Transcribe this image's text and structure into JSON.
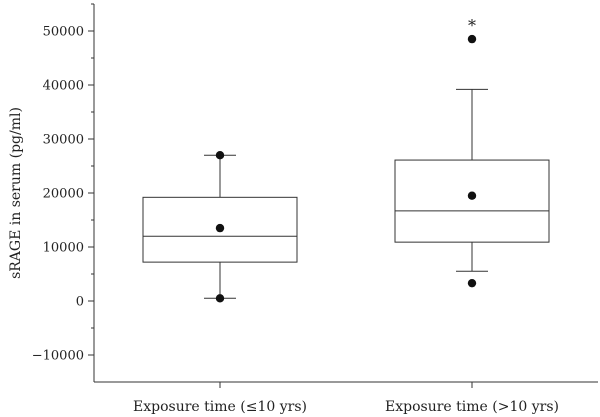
{
  "chart_data": {
    "type": "box",
    "ylabel": "sRAGE in serum (pg/ml)",
    "ylim": [
      -15000,
      55000
    ],
    "yticks": [
      -10000,
      0,
      10000,
      20000,
      30000,
      40000,
      50000
    ],
    "ytick_labels": [
      "−10000",
      "0",
      "10000",
      "20000",
      "30000",
      "40000",
      "50000"
    ],
    "groups": [
      {
        "label": "Exposure time (≤10 yrs)",
        "whisker_low": 500,
        "q1": 7200,
        "median": 12000,
        "q3": 19200,
        "whisker_high": 27000,
        "points": [
          27000,
          13500,
          500
        ],
        "annotation": ""
      },
      {
        "label": "Exposure time (>10 yrs)",
        "whisker_low": 5500,
        "q1": 10900,
        "median": 16700,
        "q3": 26100,
        "whisker_high": 39200,
        "points": [
          48500,
          19500,
          3300
        ],
        "annotation": "*"
      }
    ]
  }
}
